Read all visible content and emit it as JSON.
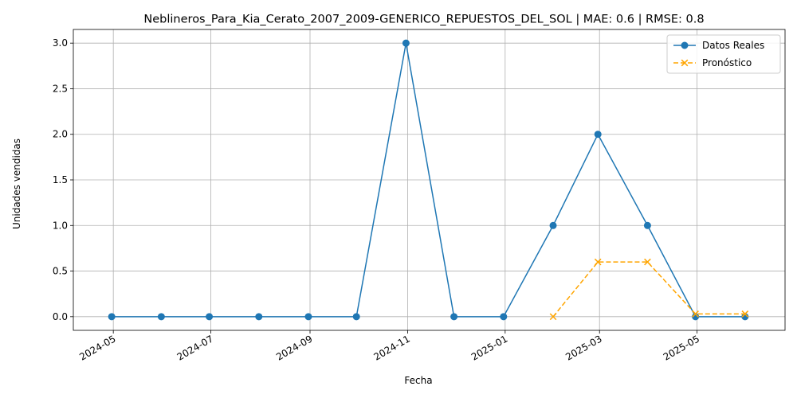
{
  "chart_data": {
    "type": "line",
    "title": "Neblineros_Para_Kia_Cerato_2007_2009-GENERICO_REPUESTOS_DEL_SOL | MAE: 0.6 | RMSE: 0.8",
    "xlabel": "Fecha",
    "ylabel": "Unidades vendidas",
    "xlim": [
      "2024-04-06",
      "2025-06-25"
    ],
    "ylim": [
      -0.15,
      3.15
    ],
    "grid": true,
    "legend_position": "top-right",
    "x_ticks": [
      "2024-05",
      "2024-07",
      "2024-09",
      "2024-11",
      "2025-01",
      "2025-03",
      "2025-05"
    ],
    "y_ticks": [
      "0.0",
      "0.5",
      "1.0",
      "1.5",
      "2.0",
      "2.5",
      "3.0"
    ],
    "series": [
      {
        "name": "Datos Reales",
        "color": "#1f77b4",
        "style": "solid",
        "marker": "circle",
        "points": [
          {
            "x": "2024-04-30",
            "y": 0
          },
          {
            "x": "2024-05-31",
            "y": 0
          },
          {
            "x": "2024-06-30",
            "y": 0
          },
          {
            "x": "2024-07-31",
            "y": 0
          },
          {
            "x": "2024-08-31",
            "y": 0
          },
          {
            "x": "2024-09-30",
            "y": 0
          },
          {
            "x": "2024-10-31",
            "y": 3
          },
          {
            "x": "2024-11-30",
            "y": 0
          },
          {
            "x": "2024-12-31",
            "y": 0
          },
          {
            "x": "2025-01-31",
            "y": 1
          },
          {
            "x": "2025-02-28",
            "y": 2
          },
          {
            "x": "2025-03-31",
            "y": 1
          },
          {
            "x": "2025-04-30",
            "y": 0
          },
          {
            "x": "2025-05-31",
            "y": 0
          }
        ]
      },
      {
        "name": "Pronóstico",
        "color": "#ffa500",
        "style": "dashed",
        "marker": "x",
        "points": [
          {
            "x": "2025-01-31",
            "y": 0
          },
          {
            "x": "2025-02-28",
            "y": 0.6
          },
          {
            "x": "2025-03-31",
            "y": 0.6
          },
          {
            "x": "2025-04-30",
            "y": 0.03
          },
          {
            "x": "2025-05-31",
            "y": 0.03
          }
        ]
      }
    ]
  }
}
